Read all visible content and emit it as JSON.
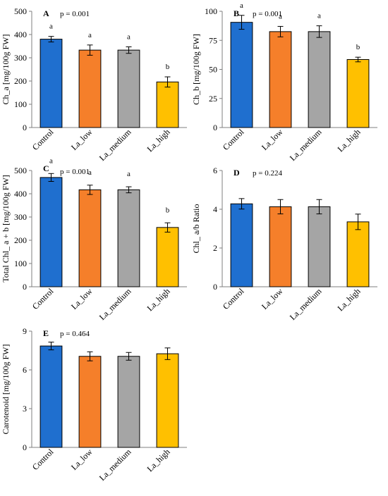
{
  "colors": {
    "Control": "#1f6fcf",
    "La_low": "#f57f2a",
    "La_medium": "#a5a5a5",
    "La_high": "#ffc000",
    "axis": "#7f7f7f"
  },
  "chart_data": [
    {
      "type": "bar",
      "panel": "A",
      "p_text": "p = 0.001",
      "ylabel": "Ch_a [mg/100g FW]",
      "categories": [
        "Control",
        "La_low",
        "La_medium",
        "La_high"
      ],
      "values": [
        380,
        333,
        333,
        196
      ],
      "errors": [
        12,
        22,
        14,
        22
      ],
      "letters": [
        "a",
        "a",
        "a",
        "b"
      ],
      "ylim": [
        0,
        500
      ],
      "yticks": [
        "0",
        "100",
        "200",
        "300",
        "400",
        "500"
      ]
    },
    {
      "type": "bar",
      "panel": "B",
      "p_text": "p = 0.001",
      "ylabel": "Ch_b [mg/100g FW]",
      "categories": [
        "Control",
        "La_low",
        "La_medium",
        "La_high"
      ],
      "values": [
        90.5,
        82.5,
        82.5,
        58.5
      ],
      "errors": [
        6,
        4.5,
        5,
        2
      ],
      "letters": [
        "a",
        "a",
        "a",
        "b"
      ],
      "ylim": [
        0,
        100
      ],
      "yticks": [
        "0",
        "25",
        "50",
        "75",
        "100"
      ]
    },
    {
      "type": "bar",
      "panel": "C",
      "p_text": "p = 0.001",
      "ylabel": "Total Chl_ a + b [mg/100g FW]",
      "categories": [
        "Control",
        "La_low",
        "La_medium",
        "La_high"
      ],
      "values": [
        470,
        417,
        417,
        255
      ],
      "errors": [
        17,
        20,
        13,
        20
      ],
      "letters": [
        "a",
        "a",
        "a",
        "b"
      ],
      "ylim": [
        0,
        500
      ],
      "yticks": [
        "0",
        "100",
        "200",
        "300",
        "400",
        "500"
      ]
    },
    {
      "type": "bar",
      "panel": "D",
      "p_text": "p = 0.224",
      "ylabel": "Chl_ a/b Ratio",
      "categories": [
        "Control",
        "La_low",
        "La_medium",
        "La_high"
      ],
      "values": [
        4.28,
        4.13,
        4.13,
        3.35
      ],
      "errors": [
        0.27,
        0.37,
        0.37,
        0.4
      ],
      "letters": [
        "",
        "",
        "",
        ""
      ],
      "ylim": [
        0,
        6
      ],
      "yticks": [
        "0",
        "2",
        "4",
        "6"
      ]
    },
    {
      "type": "bar",
      "panel": "E",
      "p_text": "p = 0.464",
      "ylabel": "Carotenoid [mg/100g FW]",
      "categories": [
        "Control",
        "La_low",
        "La_medium",
        "La_high"
      ],
      "values": [
        7.85,
        7.05,
        7.05,
        7.25
      ],
      "errors": [
        0.3,
        0.35,
        0.3,
        0.45
      ],
      "letters": [
        "",
        "",
        "",
        ""
      ],
      "ylim": [
        0,
        9
      ],
      "yticks": [
        "0",
        "3",
        "6",
        "9"
      ]
    }
  ]
}
